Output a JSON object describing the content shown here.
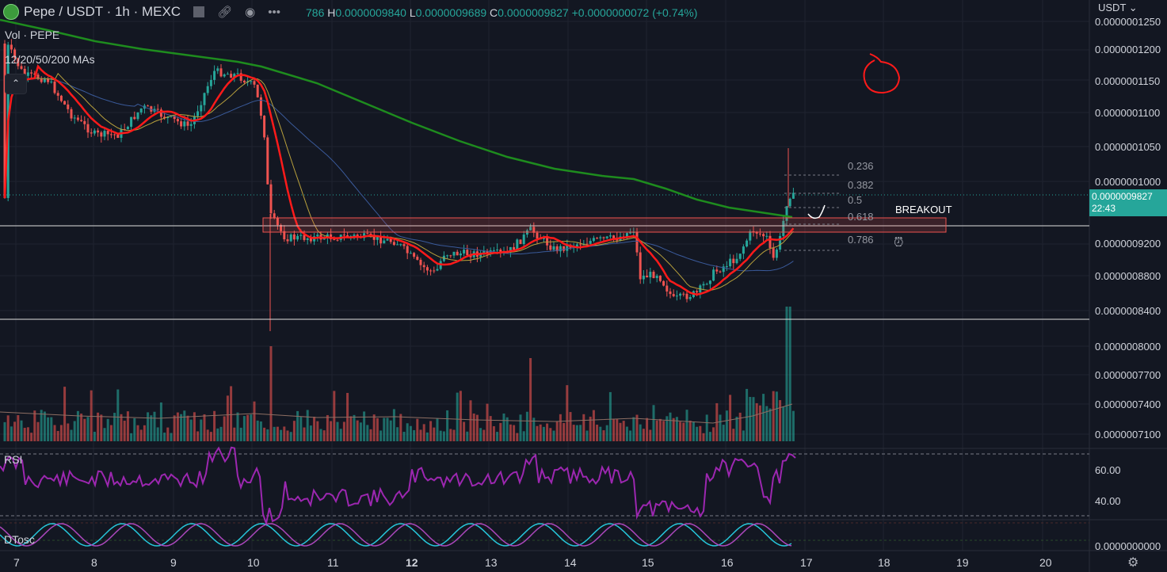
{
  "header": {
    "symbol": "Pepe / USDT · 1h · MEXC",
    "icons": [
      "flag-icon",
      "link-icon",
      "eye-icon",
      "more-icon"
    ],
    "ohlc_open_partial": "786",
    "high_label": "H",
    "high": "0.0000009840",
    "low_label": "L",
    "low": "0.0000009689",
    "close_label": "C",
    "close": "0.0000009827",
    "change": "+0.0000000072 (+0.74%)"
  },
  "legends": {
    "volume": "Vol · PEPE",
    "mas": "12/20/50/200 MAs",
    "rsi": "RSI",
    "dtosc": "DTosc"
  },
  "currency": "USDT",
  "price_axis": [
    "0.0000001250",
    "0.0000001200",
    "0.0000001150",
    "0.0000001100",
    "0.0000001050",
    "0.0000001000",
    "0.0000009200",
    "0.0000008800",
    "0.0000008400",
    "0.0000008000",
    "0.0000007700",
    "0.0000007400",
    "0.0000007100"
  ],
  "rsi_axis": [
    "60.00",
    "40.00"
  ],
  "dtosc_axis": "0.0000000000",
  "current_price": "0.0000009827",
  "countdown": "22:43",
  "fib_labels": [
    "0.236",
    "0.382",
    "0.5",
    "0.618",
    "0.786"
  ],
  "annotation": "BREAKOUT",
  "x_axis": [
    "7",
    "8",
    "9",
    "10",
    "11",
    "12",
    "13",
    "14",
    "15",
    "16",
    "17",
    "18",
    "19",
    "20"
  ],
  "x_bold": "12",
  "colors": {
    "background": "#131722",
    "bull": "#26a69a",
    "bear": "#ef5350",
    "ma12": "#ff1a1a",
    "ma20": "#b8a03c",
    "ma50": "#3a5a9a",
    "ma200": "#1e8c1e",
    "rsi": "#9c27b0",
    "dtosc_a": "#26c6da",
    "dtosc_b": "#ab47bc"
  }
}
